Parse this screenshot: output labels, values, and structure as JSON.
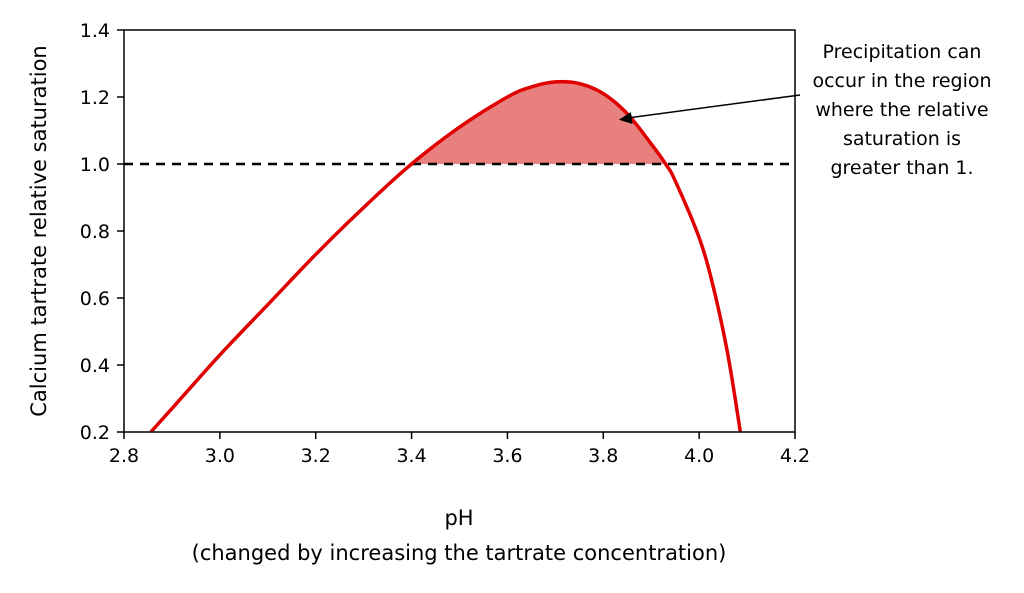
{
  "chart_data": {
    "type": "line",
    "xlabel": "pH",
    "xlabel_sub": "(changed by increasing the tartrate concentration)",
    "ylabel": "Calcium tartrate relative saturation",
    "xlim": [
      2.8,
      4.2
    ],
    "ylim": [
      0.2,
      1.4
    ],
    "x_ticks": [
      "2.8",
      "3.0",
      "3.2",
      "3.4",
      "3.6",
      "3.8",
      "4.0",
      "4.2"
    ],
    "y_ticks": [
      "0.2",
      "0.4",
      "0.6",
      "0.8",
      "1.0",
      "1.2",
      "1.4"
    ],
    "grid": false,
    "series": [
      {
        "color": "#e00000",
        "x": [
          2.856,
          2.9,
          3.0,
          3.1,
          3.2,
          3.3,
          3.4,
          3.5,
          3.6,
          3.65,
          3.7,
          3.75,
          3.8,
          3.85,
          3.9,
          3.93,
          3.95,
          4.0,
          4.03,
          4.06,
          4.086
        ],
        "y": [
          0.2,
          0.27,
          0.43,
          0.58,
          0.73,
          0.87,
          1.0,
          1.11,
          1.2,
          1.23,
          1.245,
          1.24,
          1.21,
          1.15,
          1.06,
          1.0,
          0.95,
          0.78,
          0.63,
          0.43,
          0.2
        ]
      }
    ],
    "threshold_line": {
      "y": 1.0,
      "style": "dashed",
      "color": "#000000"
    },
    "shaded_region": {
      "x_start": 3.4,
      "x_end": 3.93,
      "above_y": 1.0,
      "color": "#e88080"
    },
    "annotation": {
      "lines": [
        "Precipitation can",
        "occur in the region",
        "where the relative",
        "saturation is",
        "greater than 1."
      ],
      "arrow_target": {
        "x": 3.82,
        "y": 1.12
      }
    }
  }
}
